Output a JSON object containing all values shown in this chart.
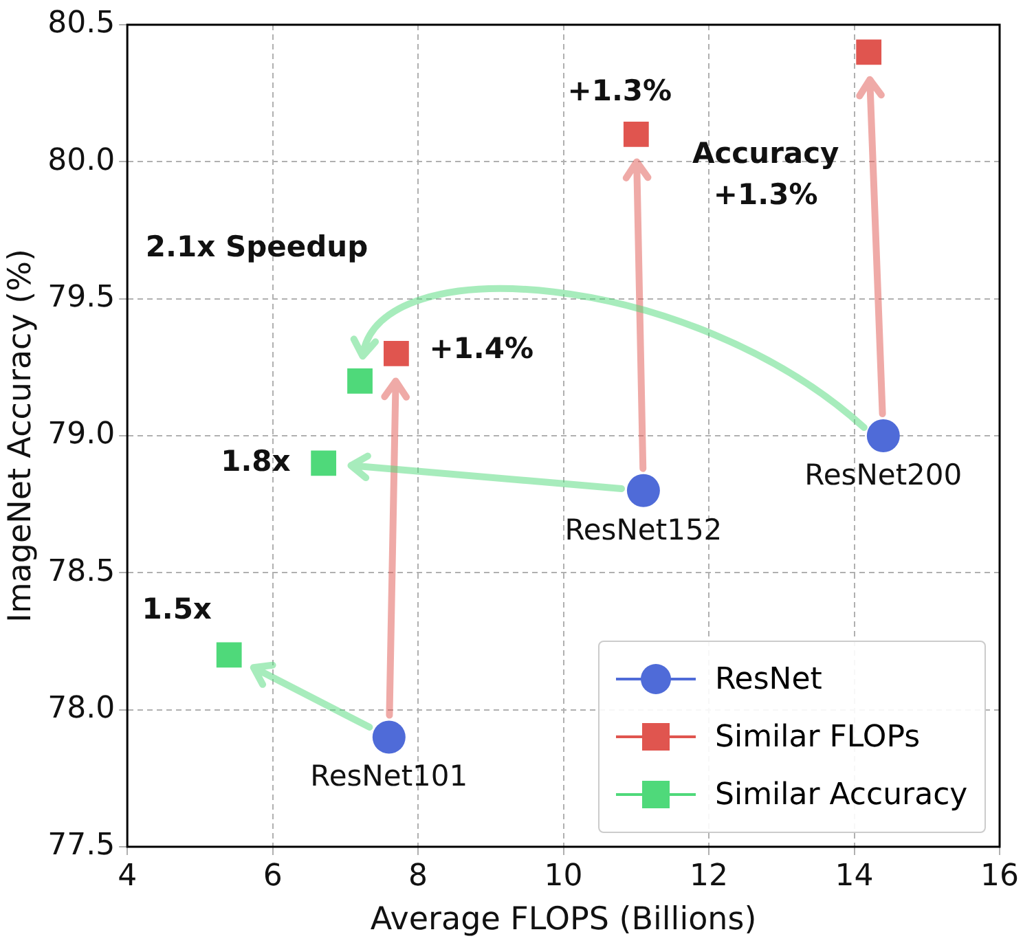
{
  "chart_data": {
    "type": "scatter",
    "xlabel": "Average FLOPS (Billions)",
    "ylabel": "ImageNet Accuracy (%)",
    "xlim": [
      4,
      16
    ],
    "xticks": [
      4,
      6,
      8,
      10,
      12,
      14,
      16
    ],
    "ylim": [
      77.5,
      80.5
    ],
    "yticks": [
      {
        "value": 77.5,
        "label": "77.5"
      },
      {
        "value": 78.0,
        "label": "78.0"
      },
      {
        "value": 78.5,
        "label": "78.5"
      },
      {
        "value": 79.0,
        "label": "79.0"
      },
      {
        "value": 79.5,
        "label": "79.5"
      },
      {
        "value": 80.0,
        "label": "80.0"
      },
      {
        "value": 80.5,
        "label": "80.5"
      }
    ],
    "grid": true,
    "legend": "bottom right",
    "series": [
      {
        "name": "ResNet",
        "color": "#4f6bd8",
        "marker": "circle",
        "x": [
          7.6,
          11.1,
          14.4
        ],
        "values": [
          77.9,
          78.8,
          79.0
        ]
      },
      {
        "name": "Similar FLOPs",
        "color": "#e0554f",
        "marker": "square",
        "x": [
          7.7,
          11.0,
          14.2
        ],
        "values": [
          79.3,
          80.1,
          80.4
        ]
      },
      {
        "name": "Similar Accuracy",
        "color": "#4fd97a",
        "marker": "square",
        "x": [
          5.4,
          6.7,
          7.2
        ],
        "values": [
          78.2,
          78.9,
          79.2
        ]
      }
    ],
    "annotations": [
      {
        "text": "ResNet101",
        "x": 7.6,
        "y": 77.9
      },
      {
        "text": "ResNet152",
        "x": 11.1,
        "y": 78.8
      },
      {
        "text": "ResNet200",
        "x": 14.4,
        "y": 79.0
      },
      {
        "text": "+1.3%",
        "x": 11.0,
        "y": 80.1
      },
      "Accuracy\n+1.3%",
      {
        "text": "+1.4%",
        "x": 7.7,
        "y": 79.3
      },
      "2.1x Speedup",
      {
        "text": "1.8x",
        "x": 6.7,
        "y": 78.9
      },
      {
        "text": "1.5x",
        "x": 5.4,
        "y": 78.2
      }
    ]
  }
}
